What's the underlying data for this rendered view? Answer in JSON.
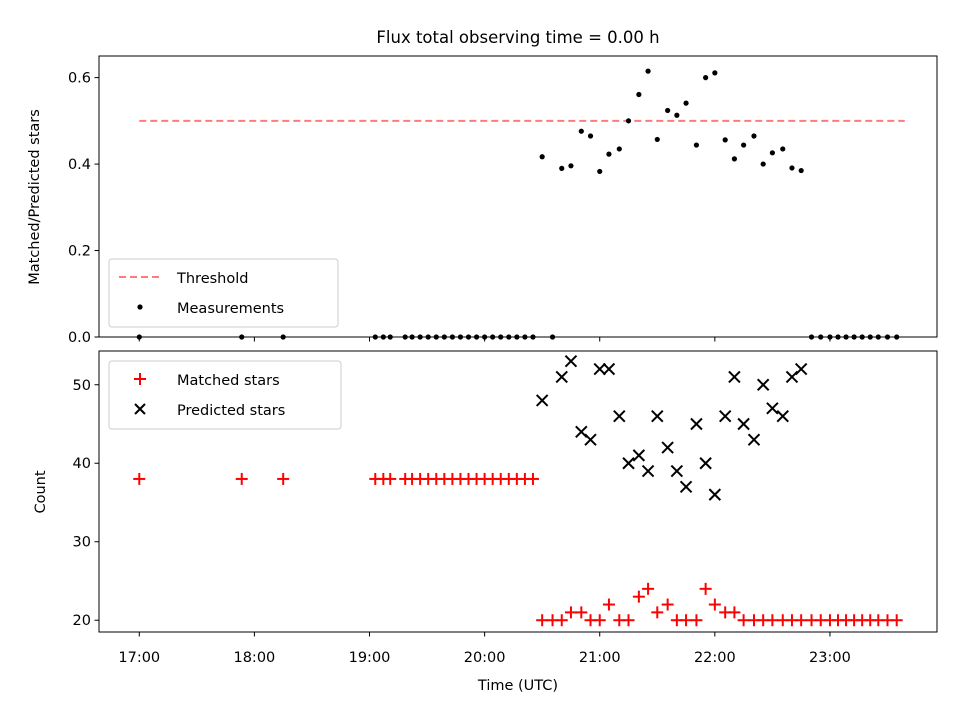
{
  "figure": {
    "title": "Flux total observing time = 0.00 h",
    "xlabel": "Time (UTC)",
    "x_ticks": [
      "17:00",
      "18:00",
      "19:00",
      "20:00",
      "21:00",
      "22:00",
      "23:00"
    ],
    "x_tick_hours": [
      17,
      18,
      19,
      20,
      21,
      22,
      23
    ]
  },
  "chart_data": [
    {
      "type": "scatter",
      "panel": "top",
      "ylabel": "Matched/Predicted stars",
      "ylim": [
        0,
        0.65
      ],
      "xlim_hours": [
        16.65,
        23.93
      ],
      "y_ticks": [
        "0.0",
        "0.2",
        "0.4",
        "0.6"
      ],
      "y_tick_values": [
        0,
        0.2,
        0.4,
        0.6
      ],
      "legend_position": "lower-left",
      "series": [
        {
          "name": "Threshold",
          "kind": "dashed-line",
          "color": "#ff7b7b",
          "x": [
            17.0,
            23.65
          ],
          "y": [
            0.5,
            0.5
          ]
        },
        {
          "name": "Measurements",
          "kind": "dot",
          "color": "#000000",
          "x": [
            17.0,
            17.89,
            18.25,
            19.05,
            19.12,
            19.18,
            19.31,
            19.37,
            19.44,
            19.51,
            19.58,
            19.65,
            19.72,
            19.79,
            19.86,
            19.93,
            20.0,
            20.07,
            20.14,
            20.21,
            20.28,
            20.35,
            20.42,
            20.5,
            20.59,
            20.67,
            20.75,
            20.84,
            20.92,
            21.0,
            21.08,
            21.17,
            21.25,
            21.34,
            21.42,
            21.5,
            21.59,
            21.67,
            21.75,
            21.84,
            21.92,
            22.0,
            22.09,
            22.17,
            22.25,
            22.34,
            22.42,
            22.5,
            22.59,
            22.67,
            22.75,
            22.84,
            22.92,
            23.0,
            23.07,
            23.14,
            23.21,
            23.28,
            23.35,
            23.42,
            23.5,
            23.58
          ],
          "y": [
            0,
            0,
            0,
            0,
            0,
            0,
            0,
            0,
            0,
            0,
            0,
            0,
            0,
            0,
            0,
            0,
            0,
            0,
            0,
            0,
            0,
            0,
            0,
            0.417,
            0,
            0.39,
            0.396,
            0.476,
            0.465,
            0.383,
            0.423,
            0.435,
            0.5,
            0.561,
            0.615,
            0.457,
            0.524,
            0.513,
            0.541,
            0.444,
            0.6,
            0.611,
            0.456,
            0.412,
            0.444,
            0.465,
            0.4,
            0.426,
            0.435,
            0.391,
            0.385,
            0,
            0,
            0,
            0,
            0,
            0,
            0,
            0,
            0,
            0,
            0
          ]
        }
      ]
    },
    {
      "type": "scatter",
      "panel": "bottom",
      "ylabel": "Count",
      "ylim": [
        18.5,
        54.3
      ],
      "xlim_hours": [
        16.65,
        23.93
      ],
      "y_ticks": [
        "20",
        "30",
        "40",
        "50"
      ],
      "y_tick_values": [
        20,
        30,
        40,
        50
      ],
      "legend_position": "upper-left",
      "series": [
        {
          "name": "Matched stars",
          "kind": "plus",
          "color": "#ff0000",
          "x": [
            17.0,
            17.89,
            18.25,
            19.05,
            19.12,
            19.18,
            19.31,
            19.37,
            19.44,
            19.51,
            19.58,
            19.65,
            19.72,
            19.79,
            19.86,
            19.93,
            20.0,
            20.07,
            20.14,
            20.21,
            20.28,
            20.35,
            20.42,
            20.5,
            20.59,
            20.67,
            20.75,
            20.84,
            20.92,
            21.0,
            21.08,
            21.17,
            21.25,
            21.34,
            21.42,
            21.5,
            21.59,
            21.67,
            21.75,
            21.84,
            21.92,
            22.0,
            22.09,
            22.17,
            22.25,
            22.34,
            22.42,
            22.5,
            22.59,
            22.67,
            22.75,
            22.84,
            22.92,
            23.0,
            23.07,
            23.14,
            23.21,
            23.28,
            23.35,
            23.42,
            23.5,
            23.58
          ],
          "y": [
            38,
            38,
            38,
            38,
            38,
            38,
            38,
            38,
            38,
            38,
            38,
            38,
            38,
            38,
            38,
            38,
            38,
            38,
            38,
            38,
            38,
            38,
            38,
            20,
            20,
            20,
            21,
            21,
            20,
            20,
            22,
            20,
            20,
            23,
            24,
            21,
            22,
            20,
            20,
            20,
            24,
            22,
            21,
            21,
            20,
            20,
            20,
            20,
            20,
            20,
            20,
            20,
            20,
            20,
            20,
            20,
            20,
            20,
            20,
            20,
            20,
            20
          ]
        },
        {
          "name": "Predicted stars",
          "kind": "x",
          "color": "#000000",
          "x": [
            20.5,
            20.67,
            20.75,
            20.84,
            20.92,
            21.0,
            21.08,
            21.17,
            21.25,
            21.34,
            21.42,
            21.5,
            21.59,
            21.67,
            21.75,
            21.84,
            21.92,
            22.0,
            22.09,
            22.17,
            22.25,
            22.34,
            22.42,
            22.5,
            22.59,
            22.67,
            22.75
          ],
          "y": [
            48,
            51,
            53,
            44,
            43,
            52,
            52,
            46,
            40,
            41,
            39,
            46,
            42,
            39,
            37,
            45,
            40,
            36,
            46,
            51,
            45,
            43,
            50,
            47,
            46,
            51,
            52
          ]
        }
      ]
    }
  ]
}
